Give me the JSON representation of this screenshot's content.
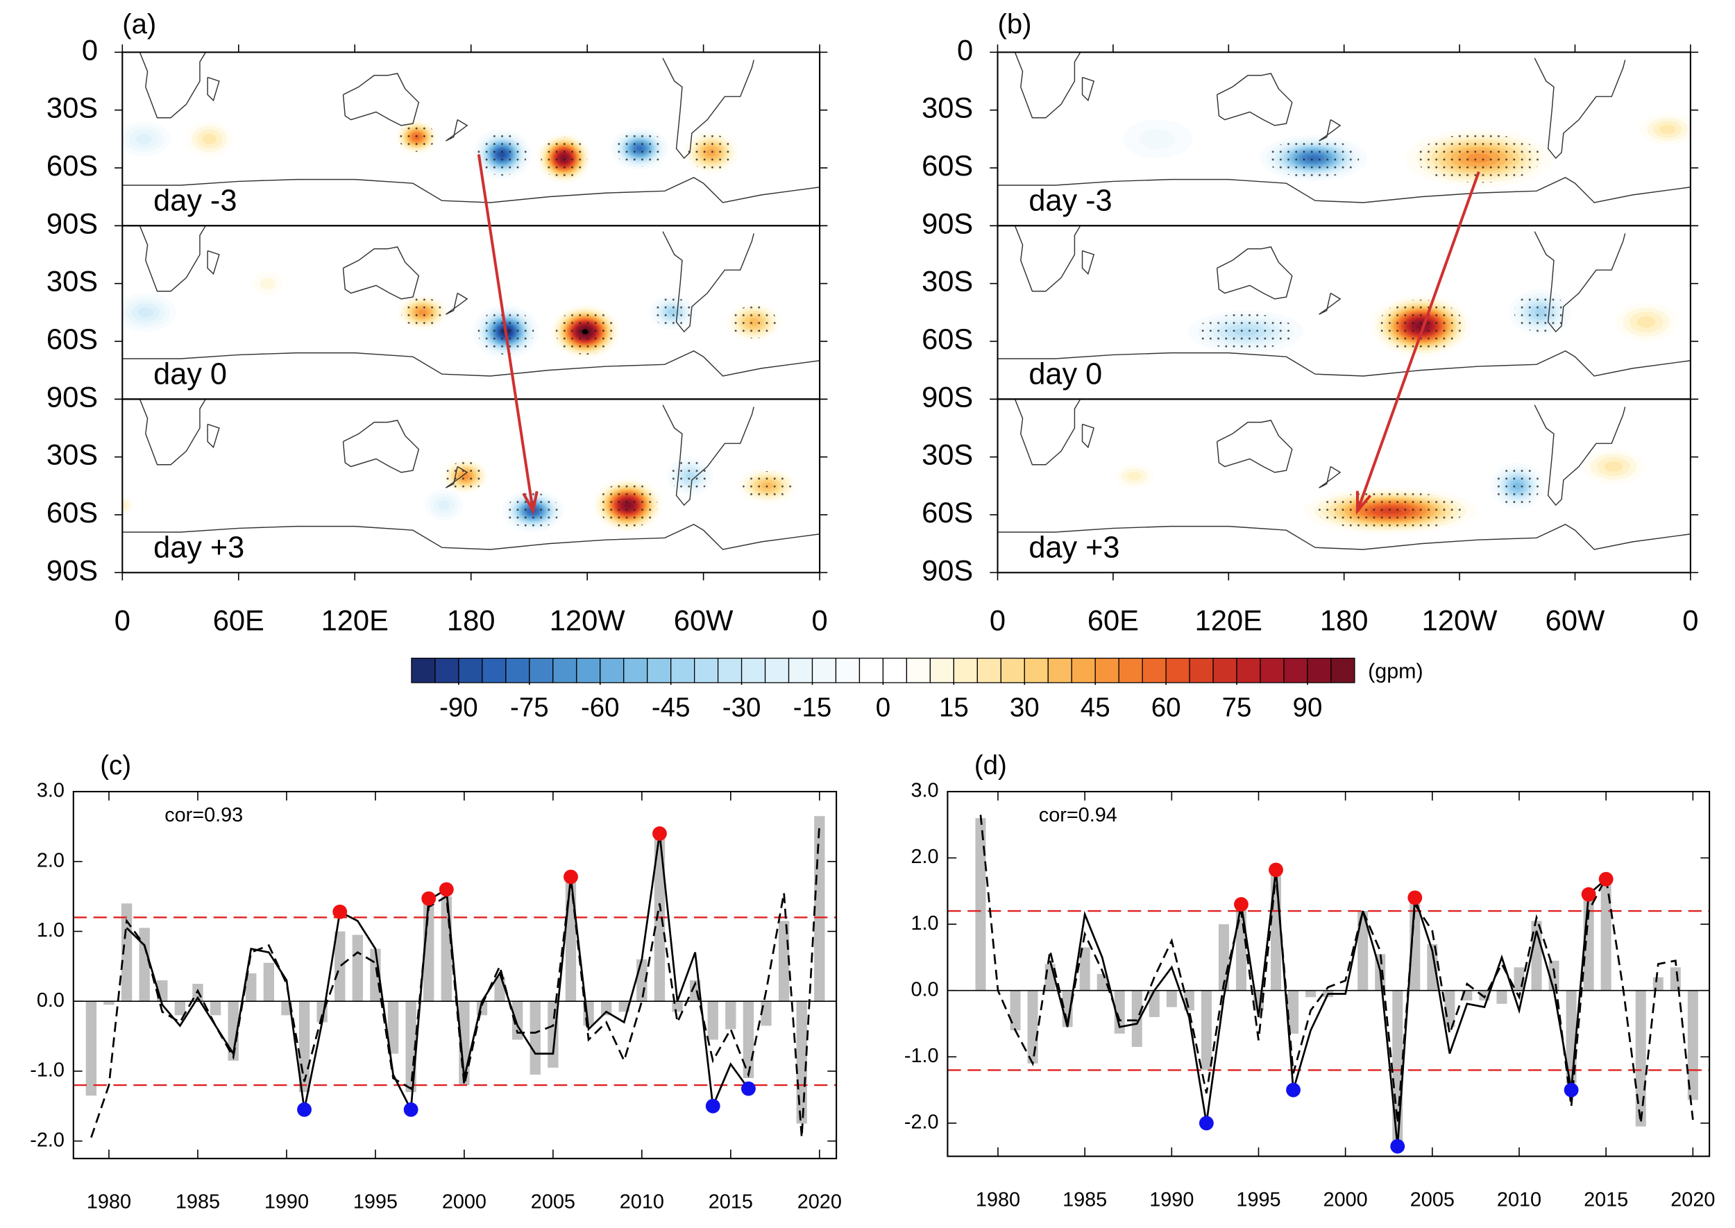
{
  "chart_data": [
    {
      "type": "map",
      "title": "(a)",
      "panels": [
        "day -3",
        "day 0",
        "day +3"
      ],
      "xlim": [
        0,
        360
      ],
      "ylim": [
        0,
        -90
      ],
      "xticks": [
        0,
        {
          "value": 60,
          "label": "60E"
        },
        {
          "value": 120,
          "label": "120E"
        },
        180,
        {
          "value": 240,
          "label": "120W"
        },
        {
          "value": 300,
          "label": "60W"
        },
        {
          "value": 360,
          "label": "0"
        }
      ],
      "yticks": [
        0,
        {
          "value": -30,
          "label": "30S"
        },
        {
          "value": -60,
          "label": "60S"
        },
        {
          "value": -90,
          "label": "90S"
        }
      ],
      "arrow_color": "#d03030"
    },
    {
      "type": "map",
      "title": "(b)",
      "panels": [
        "day -3",
        "day 0",
        "day +3"
      ],
      "xlim": [
        0,
        360
      ],
      "ylim": [
        0,
        -90
      ],
      "xticks": [
        0,
        {
          "value": 60,
          "label": "60E"
        },
        {
          "value": 120,
          "label": "120E"
        },
        180,
        {
          "value": 240,
          "label": "120W"
        },
        {
          "value": 300,
          "label": "60W"
        },
        {
          "value": 360,
          "label": "0"
        }
      ],
      "yticks": [
        0,
        {
          "value": -30,
          "label": "30S"
        },
        {
          "value": -60,
          "label": "60S"
        },
        {
          "value": -90,
          "label": "90S"
        }
      ],
      "arrow_color": "#d03030"
    },
    {
      "type": "colorbar",
      "label": "(gpm)",
      "lim": [
        -100,
        100
      ],
      "ticks": [
        -90,
        -75,
        -60,
        -45,
        -30,
        -15,
        0,
        15,
        30,
        45,
        60,
        75,
        90
      ],
      "colors": [
        "#1a2c6b",
        "#1f3d8a",
        "#2450a0",
        "#2b62b3",
        "#3572bd",
        "#4183c6",
        "#4f94cf",
        "#5ea3d7",
        "#6eb1de",
        "#80bee5",
        "#92caeb",
        "#a4d5f0",
        "#b5def4",
        "#c5e6f7",
        "#d3ecf9",
        "#dff2fb",
        "#e9f6fc",
        "#f1f9fd",
        "#f8fcfe",
        "#ffffff",
        "#ffffff",
        "#fffdf5",
        "#fff8e1",
        "#fff1c8",
        "#fee8ae",
        "#fddc92",
        "#fccf78",
        "#fbbd5f",
        "#f9aa4b",
        "#f7953c",
        "#f37f31",
        "#ee6a2a",
        "#e55526",
        "#d94323",
        "#cc3223",
        "#bd2425",
        "#ab1a27",
        "#981428",
        "#861126",
        "#731022"
      ]
    },
    {
      "type": "bar",
      "title": "(c)",
      "annotation": "cor=0.93",
      "x": [
        1979,
        1980,
        1981,
        1982,
        1983,
        1984,
        1985,
        1986,
        1987,
        1988,
        1989,
        1990,
        1991,
        1992,
        1993,
        1994,
        1995,
        1996,
        1997,
        1998,
        1999,
        2000,
        2001,
        2002,
        2003,
        2004,
        2005,
        2006,
        2007,
        2008,
        2009,
        2010,
        2011,
        2012,
        2013,
        2014,
        2015,
        2016,
        2017,
        2018,
        2019,
        2020
      ],
      "series": [
        {
          "style": "bar",
          "color": "#bfbfbf",
          "values": [
            -1.35,
            -0.05,
            1.4,
            1.05,
            0.3,
            -0.2,
            0.25,
            -0.2,
            -0.85,
            0.4,
            0.55,
            -0.2,
            -1.3,
            -0.3,
            1.0,
            0.95,
            0.75,
            -0.75,
            -1.3,
            1.45,
            1.5,
            -1.2,
            -0.2,
            0.35,
            -0.55,
            -1.05,
            -0.95,
            1.7,
            -0.35,
            -0.2,
            -0.15,
            0.6,
            2.35,
            -0.15,
            0.3,
            -0.55,
            -0.4,
            -1.1,
            -0.35,
            1.15,
            -1.75,
            2.65
          ]
        },
        {
          "style": "solid",
          "color": "#000000",
          "values": [
            null,
            null,
            1.05,
            0.8,
            -0.05,
            -0.35,
            0.05,
            -0.35,
            -0.75,
            0.75,
            0.7,
            0.3,
            -1.55,
            -0.3,
            1.28,
            1.15,
            0.75,
            -1.05,
            -1.55,
            1.45,
            1.6,
            -1.1,
            0.0,
            0.4,
            -0.35,
            -0.75,
            -0.75,
            1.78,
            -0.4,
            -0.15,
            -0.3,
            0.6,
            2.4,
            0.0,
            0.7,
            -1.5,
            -0.9,
            -1.25,
            null,
            null,
            null,
            null
          ]
        },
        {
          "style": "dashed",
          "color": "#000000",
          "values": [
            -1.95,
            -1.2,
            1.15,
            0.8,
            -0.15,
            -0.3,
            0.15,
            -0.35,
            -0.8,
            0.7,
            0.8,
            0.25,
            -1.15,
            -0.2,
            0.5,
            0.7,
            0.55,
            -1.1,
            -1.25,
            1.35,
            1.5,
            -1.2,
            -0.05,
            0.5,
            -0.45,
            -0.45,
            -0.35,
            1.75,
            -0.55,
            -0.3,
            -0.85,
            0.0,
            1.4,
            -0.3,
            0.25,
            -0.85,
            -0.4,
            -1.05,
            0.15,
            1.55,
            -1.95,
            2.55
          ]
        }
      ],
      "markers": [
        {
          "color": "#ee1111",
          "x": [
            1993,
            1998,
            1999,
            2006,
            2011
          ],
          "values": [
            1.28,
            1.47,
            1.6,
            1.78,
            2.4
          ]
        },
        {
          "color": "#1111ee",
          "x": [
            1991,
            1997,
            2014,
            2016
          ],
          "values": [
            -1.55,
            -1.55,
            -1.5,
            -1.25
          ]
        }
      ],
      "hlines": [
        1.2,
        -1.2
      ],
      "hline_color": "#e02020",
      "xlim": [
        1978.0,
        2020.95
      ],
      "ylim": [
        -2.25,
        3.0
      ],
      "xticks": [
        1980,
        1985,
        1990,
        1995,
        2000,
        2005,
        2010,
        2015,
        2020
      ],
      "yticks": [
        {
          "value": 3,
          "label": "3.0"
        },
        {
          "value": 2,
          "label": "2.0"
        },
        {
          "value": 1,
          "label": "1.0"
        },
        {
          "value": 0,
          "label": "0.0"
        },
        {
          "value": -1,
          "label": "-1.0"
        },
        {
          "value": -2,
          "label": "-2.0"
        }
      ]
    },
    {
      "type": "bar",
      "title": "(d)",
      "annotation": "cor=0.94",
      "x": [
        1979,
        1980,
        1981,
        1982,
        1983,
        1984,
        1985,
        1986,
        1987,
        1988,
        1989,
        1990,
        1991,
        1992,
        1993,
        1994,
        1995,
        1996,
        1997,
        1998,
        1999,
        2000,
        2001,
        2002,
        2003,
        2004,
        2005,
        2006,
        2007,
        2008,
        2009,
        2010,
        2011,
        2012,
        2013,
        2014,
        2015,
        2016,
        2017,
        2018,
        2019,
        2020
      ],
      "series": [
        {
          "style": "bar",
          "color": "#bfbfbf",
          "values": [
            2.6,
            0.0,
            -0.6,
            -1.1,
            0.4,
            -0.55,
            0.65,
            0.25,
            -0.65,
            -0.85,
            -0.4,
            -0.25,
            -0.3,
            -1.2,
            1.0,
            1.3,
            -0.3,
            1.8,
            -0.65,
            -0.1,
            -0.1,
            0.0,
            1.2,
            0.55,
            -2.3,
            1.35,
            0.7,
            -0.55,
            -0.15,
            -0.15,
            -0.2,
            0.35,
            1.05,
            0.45,
            -1.4,
            1.45,
            1.65,
            0.0,
            -2.05,
            0.2,
            0.35,
            -1.65
          ]
        },
        {
          "style": "solid",
          "color": "#000000",
          "values": [
            null,
            null,
            null,
            null,
            0.45,
            -0.55,
            1.15,
            0.5,
            -0.55,
            -0.5,
            0.0,
            0.35,
            -0.4,
            -2.0,
            -0.1,
            1.3,
            -0.4,
            1.82,
            -1.5,
            -0.6,
            -0.05,
            -0.05,
            1.2,
            0.3,
            -2.35,
            1.4,
            0.6,
            -0.95,
            -0.2,
            -0.25,
            0.5,
            -0.3,
            0.9,
            0.0,
            -1.5,
            1.45,
            1.68,
            null,
            null,
            null,
            null,
            null
          ]
        },
        {
          "style": "dashed",
          "color": "#000000",
          "values": [
            2.65,
            0.0,
            -0.6,
            -1.1,
            0.6,
            -0.5,
            0.85,
            0.3,
            -0.45,
            -0.45,
            0.2,
            0.75,
            -0.3,
            -1.55,
            0.1,
            1.2,
            -0.75,
            1.75,
            -1.25,
            -0.3,
            0.05,
            0.15,
            1.2,
            0.6,
            -2.0,
            1.3,
            0.9,
            -0.65,
            0.1,
            -0.1,
            0.4,
            -0.1,
            1.1,
            0.3,
            -1.75,
            1.2,
            1.7,
            0.0,
            -2.0,
            0.4,
            0.45,
            -1.95
          ]
        }
      ],
      "markers": [
        {
          "color": "#ee1111",
          "x": [
            1994,
            1996,
            2004,
            2014,
            2015
          ],
          "values": [
            1.3,
            1.82,
            1.4,
            1.45,
            1.68
          ]
        },
        {
          "color": "#1111ee",
          "x": [
            1992,
            1997,
            2003,
            2013
          ],
          "values": [
            -2.0,
            -1.5,
            -2.35,
            -1.5
          ]
        }
      ],
      "hlines": [
        1.2,
        -1.2
      ],
      "hline_color": "#e02020",
      "xlim": [
        1977.1,
        2020.95
      ],
      "ylim": [
        -2.5,
        3.0
      ],
      "xticks": [
        1980,
        1985,
        1990,
        1995,
        2000,
        2005,
        2010,
        2015,
        2020
      ],
      "yticks": [
        {
          "value": 3,
          "label": "3.0"
        },
        {
          "value": 2,
          "label": "2.0"
        },
        {
          "value": 1,
          "label": "1.0"
        },
        {
          "value": 0,
          "label": "0.0"
        },
        {
          "value": -1,
          "label": "-1.0"
        },
        {
          "value": -2,
          "label": "-2.0"
        }
      ]
    }
  ]
}
